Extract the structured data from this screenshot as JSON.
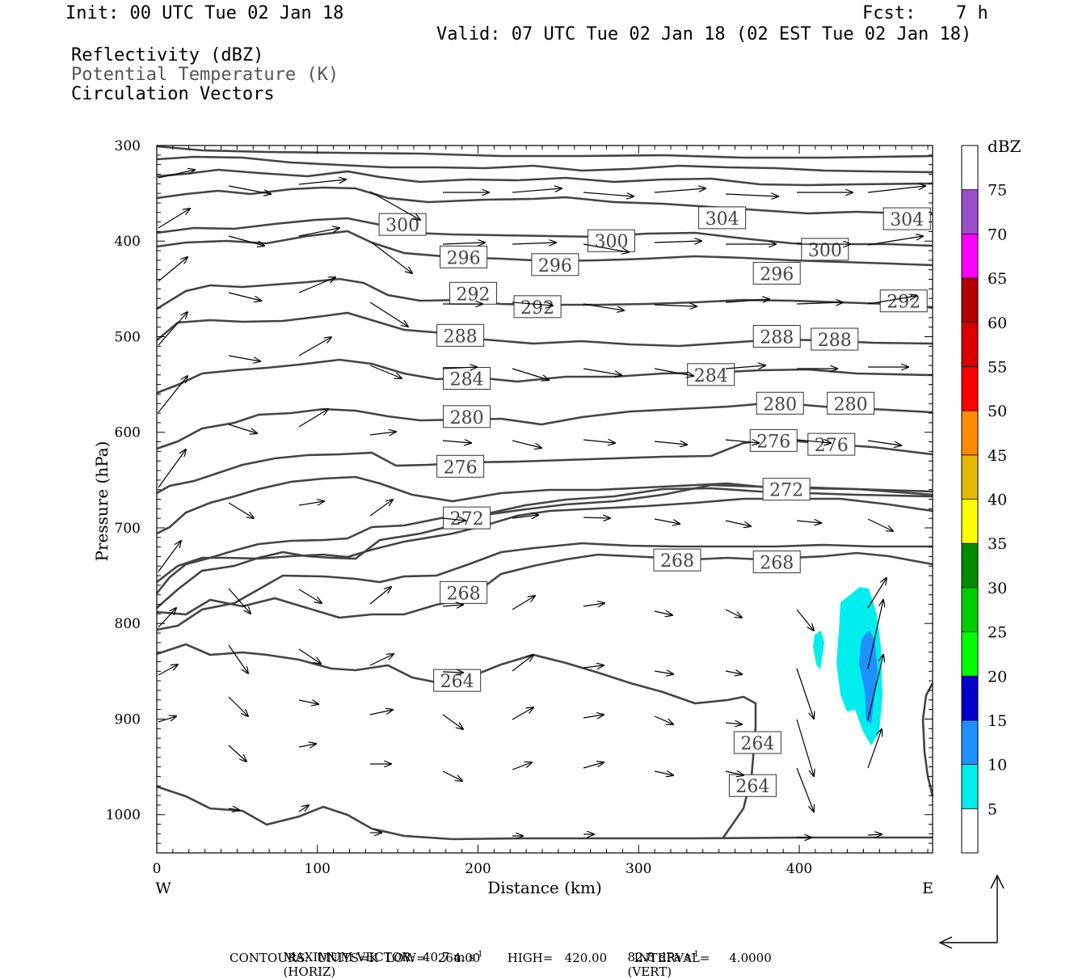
{
  "header": {
    "init": "Init: 00 UTC Tue 02 Jan 18",
    "fcst_label": "Fcst:",
    "fcst_value": "7 h",
    "valid": "Valid: 07 UTC Tue 02 Jan 18 (02 EST Tue 02 Jan 18)",
    "fields": [
      "Reflectivity (dBZ)",
      "Potential Temperature (K)",
      "Circulation Vectors"
    ]
  },
  "footer": {
    "max_vector": "MAXIMUM VECTOR:  40.7 m s",
    "horiz": "(HORIZ)",
    "vert_val": "82.8 dPa s",
    "vert": "(VERT)",
    "contours": "CONTOURS:  UNITS=K  LOW=   264.00       HIGH=   420.00       INTERVAL=     4.0000",
    "exp": "-1"
  },
  "chart_data": {
    "type": "cross-section",
    "xlabel": "Distance (km)",
    "ylabel": "Pressure (hPa)",
    "xlim": [
      0,
      483
    ],
    "ylim": [
      1040,
      300
    ],
    "x_ticks": [
      0,
      100,
      200,
      300,
      400
    ],
    "y_ticks": [
      300,
      400,
      500,
      600,
      700,
      800,
      900,
      1000
    ],
    "west_label": "W",
    "east_label": "E",
    "theta_contours": [
      {
        "level": 264,
        "labels": [
          [
            187,
            860
          ],
          [
            374,
            925
          ],
          [
            371,
            970
          ]
        ]
      },
      {
        "level": 268,
        "labels": [
          [
            191,
            768
          ],
          [
            324,
            734
          ],
          [
            386,
            736
          ]
        ]
      },
      {
        "level": 272,
        "labels": [
          [
            193,
            690
          ],
          [
            392,
            660
          ]
        ]
      },
      {
        "level": 276,
        "labels": [
          [
            189,
            636
          ],
          [
            384,
            609
          ],
          [
            420,
            613
          ]
        ]
      },
      {
        "level": 280,
        "labels": [
          [
            193,
            584
          ],
          [
            388,
            570
          ],
          [
            432,
            570
          ]
        ]
      },
      {
        "level": 284,
        "labels": [
          [
            193,
            544
          ],
          [
            345,
            540
          ]
        ]
      },
      {
        "level": 288,
        "labels": [
          [
            189,
            499
          ],
          [
            386,
            500
          ],
          [
            422,
            503
          ]
        ]
      },
      {
        "level": 292,
        "labels": [
          [
            197,
            455
          ],
          [
            237,
            469
          ],
          [
            465,
            463
          ]
        ]
      },
      {
        "level": 296,
        "labels": [
          [
            191,
            417
          ],
          [
            248,
            425
          ],
          [
            386,
            434
          ]
        ]
      },
      {
        "level": 300,
        "labels": [
          [
            153,
            383
          ],
          [
            283,
            400
          ],
          [
            416,
            409
          ]
        ]
      },
      {
        "level": 304,
        "labels": [
          [
            352,
            376
          ],
          [
            467,
            377
          ]
        ]
      }
    ],
    "reflectivity_colorbar": {
      "title": "dBZ",
      "levels": [
        5,
        10,
        15,
        20,
        25,
        30,
        35,
        40,
        45,
        50,
        55,
        60,
        65,
        70,
        75
      ],
      "colors": [
        "#ffffff",
        "#00eeee",
        "#1e90ff",
        "#0000cd",
        "#00ff00",
        "#00cd00",
        "#008b00",
        "#ffff00",
        "#e5b800",
        "#ff8c00",
        "#ff0000",
        "#dd0000",
        "#b40000",
        "#ff00ff",
        "#9a4fc9",
        "#ffffff"
      ]
    },
    "reflectivity_areas": [
      {
        "dbz": 5,
        "note": "cyan cell near 420-450 km, 770-930 hPa"
      },
      {
        "dbz": 10,
        "note": "blue core near 440-450 km, 820-910 hPa"
      }
    ]
  }
}
